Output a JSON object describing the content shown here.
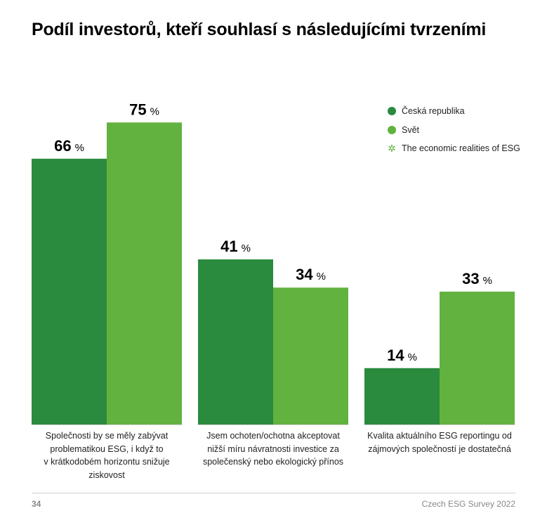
{
  "chart_data": {
    "type": "bar",
    "title": "Podíl investorů, kteří souhlasí s následujícími tvrzeními",
    "categories": [
      [
        "Společnosti by se měly zabývat",
        "problematikou ESG, i když to",
        "v krátkodobém horizontu snižuje",
        "ziskovost"
      ],
      [
        "Jsem ochoten/ochotna akceptovat",
        "nižší míru návratnosti investice za",
        "společenský nebo ekologický přínos"
      ],
      [
        "Kvalita aktuálního ESG reportingu od",
        "zájmových společností je dostatečná"
      ]
    ],
    "series": [
      {
        "name": "Česká republika",
        "values": [
          66,
          41,
          14
        ],
        "color": "#2a8a3e"
      },
      {
        "name": "Svět",
        "values": [
          75,
          34,
          33
        ],
        "color": "#62b23f"
      }
    ],
    "unit": "%",
    "ylim": [
      0,
      100
    ],
    "grid": false,
    "legend": "top-right",
    "legend_extra": {
      "label": "The economic realities of ESG",
      "icon": "star-icon",
      "color": "#62b23f"
    }
  },
  "footer": {
    "page_number": "34",
    "publication": "Czech ESG Survey 2022"
  }
}
